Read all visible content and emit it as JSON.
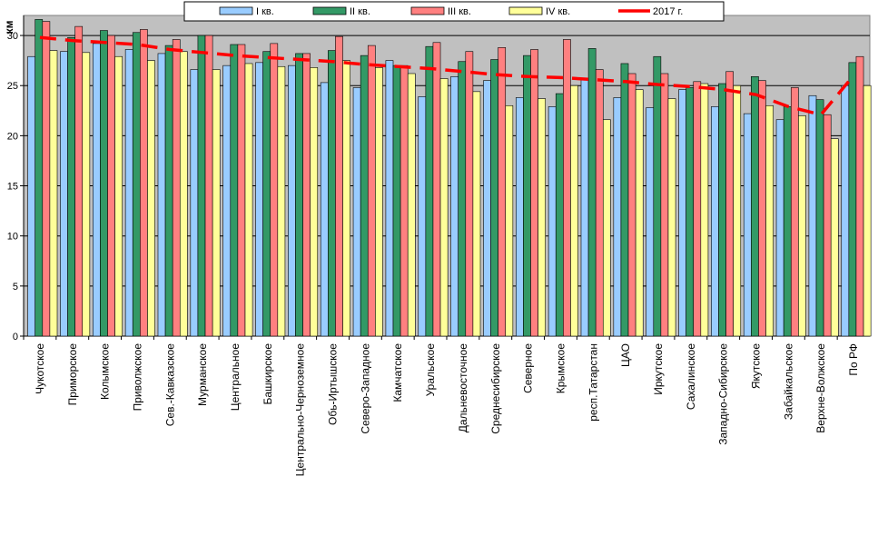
{
  "chart_data": {
    "type": "bar",
    "ylabel": "км",
    "ylim": [
      0,
      32
    ],
    "yticks": [
      0,
      5,
      10,
      15,
      20,
      25,
      30
    ],
    "grid": "horizontal major gridlines",
    "legend_position": "top",
    "categories": [
      "Чукотское",
      "Приморское",
      "Колымское",
      "Приволжское",
      "Сев.-Кавказское",
      "Мурманское",
      "Центральное",
      "Башкирское",
      "Центрально-Черноземное",
      "Обь-Иртышское",
      "Северо-Западное",
      "Камчатское",
      "Уральское",
      "Дальневосточное",
      "Среднесибирское",
      "Северное",
      "Крымское",
      "респ.Татарстан",
      "ЦАО",
      "Иркутское",
      "Сахалинское",
      "Западно-Сибирское",
      "Якутское",
      "Забайкальское",
      "Верхне-Волжское",
      "По РФ"
    ],
    "series": [
      {
        "name": "I кв.",
        "color": "#99ccff",
        "values": [
          27.9,
          28.4,
          29.2,
          28.6,
          28.2,
          26.6,
          27.0,
          27.3,
          27.0,
          25.3,
          24.8,
          27.5,
          23.9,
          25.9,
          25.5,
          23.8,
          22.9,
          25.7,
          23.8,
          22.8,
          24.6,
          22.9,
          22.2,
          21.6,
          24.0,
          25.0
        ]
      },
      {
        "name": "II кв.",
        "color": "#339966",
        "values": [
          31.6,
          29.8,
          30.5,
          30.3,
          29.0,
          30.0,
          29.1,
          28.4,
          28.2,
          28.5,
          28.0,
          27.0,
          28.9,
          27.4,
          27.6,
          28.0,
          24.2,
          28.7,
          27.2,
          27.9,
          24.8,
          25.2,
          25.9,
          22.9,
          23.6,
          27.3
        ]
      },
      {
        "name": "III кв.",
        "color": "#ff8080",
        "values": [
          31.4,
          30.9,
          30.0,
          30.6,
          29.6,
          30.0,
          29.1,
          29.2,
          28.2,
          29.9,
          29.0,
          27.0,
          29.3,
          28.4,
          28.8,
          28.6,
          29.6,
          26.6,
          26.2,
          26.2,
          25.4,
          26.4,
          25.5,
          24.8,
          22.1,
          27.9
        ]
      },
      {
        "name": "IV кв.",
        "color": "#ffff99",
        "values": [
          28.5,
          28.3,
          27.9,
          27.5,
          28.4,
          26.6,
          27.2,
          26.9,
          26.8,
          27.5,
          26.8,
          26.2,
          25.7,
          24.4,
          23.0,
          23.7,
          25.0,
          21.6,
          24.6,
          23.7,
          25.2,
          25.0,
          23.0,
          22.0,
          19.7,
          25.0
        ]
      }
    ],
    "line_series": {
      "name": "2017 г.",
      "color": "#ff0000",
      "style": "dashed",
      "values": [
        29.8,
        29.5,
        29.3,
        29.1,
        28.6,
        28.3,
        28.0,
        27.8,
        27.6,
        27.4,
        27.1,
        26.9,
        26.7,
        26.4,
        26.1,
        25.9,
        25.8,
        25.6,
        25.4,
        25.1,
        24.9,
        24.6,
        24.1,
        22.9,
        22.1,
        26.0
      ]
    }
  }
}
